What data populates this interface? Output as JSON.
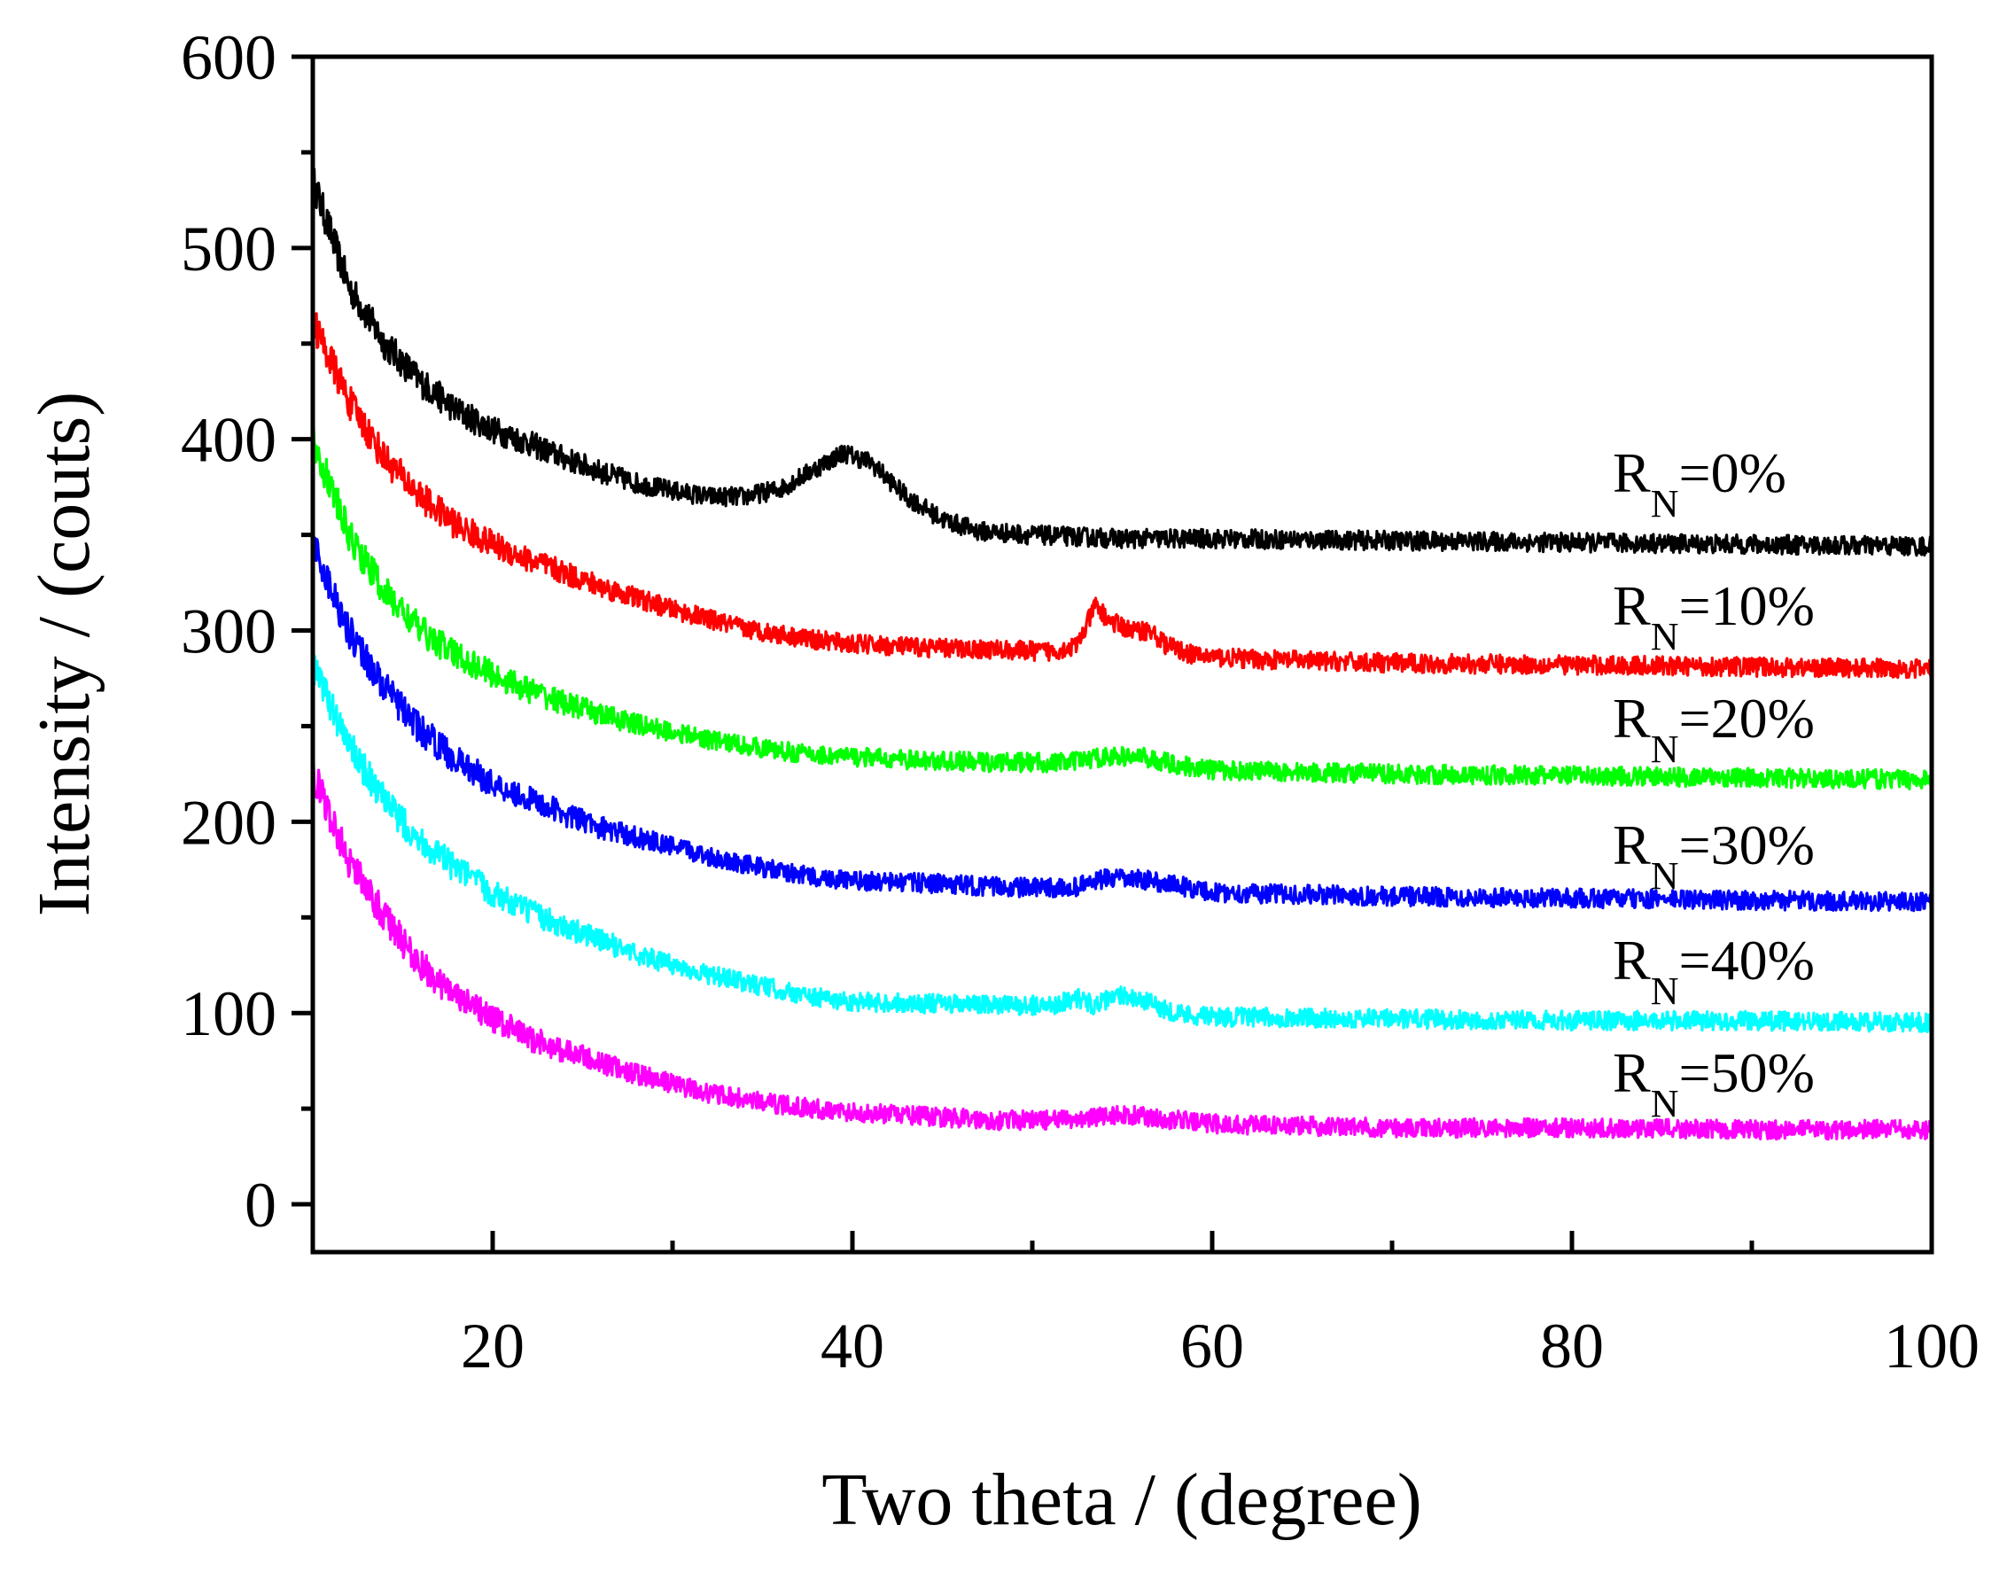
{
  "chart_data": {
    "type": "line",
    "title": "",
    "xlabel": "Two theta / (degree)",
    "ylabel": "Intensity / (couts)",
    "xlim": [
      10,
      100
    ],
    "ylim": [
      -25,
      600
    ],
    "x_ticks": [
      20,
      40,
      60,
      80,
      100
    ],
    "x_tick_labels": [
      "20",
      "40",
      "60",
      "80",
      "100"
    ],
    "y_ticks": [
      0,
      100,
      200,
      300,
      400,
      500,
      600
    ],
    "y_tick_labels": [
      "0",
      "100",
      "200",
      "300",
      "400",
      "500",
      "600"
    ],
    "grid": false,
    "legend": "inline labels at right end of each curve",
    "series": [
      {
        "name_main": "R",
        "name_sub": "N",
        "name_tail": "=0%",
        "color": "#000000",
        "points": [
          [
            10,
            535
          ],
          [
            12,
            480
          ],
          [
            14,
            450
          ],
          [
            16,
            430
          ],
          [
            18,
            415
          ],
          [
            20,
            405
          ],
          [
            22,
            398
          ],
          [
            24,
            390
          ],
          [
            26,
            383
          ],
          [
            28,
            377
          ],
          [
            30,
            373
          ],
          [
            32,
            370
          ],
          [
            34,
            370
          ],
          [
            36,
            374
          ],
          [
            38,
            385
          ],
          [
            39.5,
            393
          ],
          [
            41,
            388
          ],
          [
            43,
            370
          ],
          [
            45,
            358
          ],
          [
            47,
            352
          ],
          [
            50,
            350
          ],
          [
            55,
            348
          ],
          [
            60,
            348
          ],
          [
            70,
            347
          ],
          [
            80,
            346
          ],
          [
            90,
            345
          ],
          [
            100,
            344
          ]
        ]
      },
      {
        "name_main": "R",
        "name_sub": "N",
        "name_tail": "=10%",
        "color": "#ff0000",
        "points": [
          [
            10,
            462
          ],
          [
            12,
            420
          ],
          [
            14,
            390
          ],
          [
            16,
            370
          ],
          [
            18,
            355
          ],
          [
            20,
            345
          ],
          [
            22,
            337
          ],
          [
            24,
            330
          ],
          [
            26,
            323
          ],
          [
            28,
            317
          ],
          [
            30,
            311
          ],
          [
            32,
            306
          ],
          [
            34,
            301
          ],
          [
            36,
            298
          ],
          [
            38,
            295
          ],
          [
            40,
            293
          ],
          [
            44,
            291
          ],
          [
            48,
            290
          ],
          [
            51,
            289
          ],
          [
            52.5,
            292
          ],
          [
            53.5,
            313
          ],
          [
            54.3,
            305
          ],
          [
            55.5,
            300
          ],
          [
            56.5,
            300
          ],
          [
            57.5,
            292
          ],
          [
            59,
            287
          ],
          [
            62,
            285
          ],
          [
            70,
            283
          ],
          [
            80,
            282
          ],
          [
            90,
            281
          ],
          [
            100,
            280
          ]
        ]
      },
      {
        "name_main": "R",
        "name_sub": "N",
        "name_tail": "=20%",
        "color": "#00ff00",
        "points": [
          [
            10,
            400
          ],
          [
            12,
            350
          ],
          [
            14,
            320
          ],
          [
            16,
            300
          ],
          [
            18,
            287
          ],
          [
            20,
            277
          ],
          [
            22,
            269
          ],
          [
            24,
            262
          ],
          [
            26,
            256
          ],
          [
            28,
            251
          ],
          [
            30,
            247
          ],
          [
            32,
            243
          ],
          [
            34,
            240
          ],
          [
            36,
            237
          ],
          [
            38,
            235
          ],
          [
            40,
            234
          ],
          [
            44,
            232
          ],
          [
            48,
            231
          ],
          [
            52,
            231
          ],
          [
            54,
            234
          ],
          [
            56,
            234
          ],
          [
            58,
            230
          ],
          [
            60,
            227
          ],
          [
            70,
            225
          ],
          [
            80,
            224
          ],
          [
            90,
            223
          ],
          [
            100,
            222
          ]
        ]
      },
      {
        "name_main": "R",
        "name_sub": "N",
        "name_tail": "=30%",
        "color": "#0000ff",
        "points": [
          [
            10,
            345
          ],
          [
            12,
            300
          ],
          [
            14,
            270
          ],
          [
            16,
            248
          ],
          [
            18,
            232
          ],
          [
            20,
            220
          ],
          [
            22,
            212
          ],
          [
            24,
            204
          ],
          [
            26,
            197
          ],
          [
            28,
            192
          ],
          [
            30,
            187
          ],
          [
            32,
            182
          ],
          [
            34,
            178
          ],
          [
            36,
            174
          ],
          [
            38,
            171
          ],
          [
            40,
            169
          ],
          [
            44,
            168
          ],
          [
            48,
            166
          ],
          [
            52,
            165
          ],
          [
            54,
            170
          ],
          [
            56,
            170
          ],
          [
            58,
            167
          ],
          [
            60,
            163
          ],
          [
            70,
            161
          ],
          [
            80,
            160
          ],
          [
            90,
            159
          ],
          [
            100,
            158
          ]
        ]
      },
      {
        "name_main": "R",
        "name_sub": "N",
        "name_tail": "=40%",
        "color": "#00ffff",
        "points": [
          [
            10,
            282
          ],
          [
            12,
            240
          ],
          [
            14,
            210
          ],
          [
            16,
            190
          ],
          [
            18,
            175
          ],
          [
            20,
            163
          ],
          [
            22,
            153
          ],
          [
            24,
            145
          ],
          [
            26,
            138
          ],
          [
            28,
            131
          ],
          [
            30,
            125
          ],
          [
            32,
            120
          ],
          [
            34,
            116
          ],
          [
            36,
            112
          ],
          [
            38,
            108
          ],
          [
            40,
            106
          ],
          [
            44,
            105
          ],
          [
            48,
            104
          ],
          [
            51,
            104
          ],
          [
            52.5,
            108
          ],
          [
            53.5,
            104
          ],
          [
            55,
            110
          ],
          [
            56,
            107
          ],
          [
            58,
            100
          ],
          [
            60,
            98
          ],
          [
            70,
            97
          ],
          [
            80,
            96
          ],
          [
            90,
            96
          ],
          [
            100,
            95
          ]
        ]
      },
      {
        "name_main": "R",
        "name_sub": "N",
        "name_tail": "=50%",
        "color": "#ff00ff",
        "points": [
          [
            10,
            225
          ],
          [
            12,
            180
          ],
          [
            14,
            150
          ],
          [
            16,
            125
          ],
          [
            18,
            108
          ],
          [
            20,
            97
          ],
          [
            22,
            87
          ],
          [
            24,
            80
          ],
          [
            26,
            74
          ],
          [
            28,
            68
          ],
          [
            30,
            63
          ],
          [
            32,
            58
          ],
          [
            34,
            55
          ],
          [
            36,
            52
          ],
          [
            38,
            50
          ],
          [
            40,
            48
          ],
          [
            44,
            46
          ],
          [
            48,
            44
          ],
          [
            52,
            44
          ],
          [
            55,
            47
          ],
          [
            57,
            45
          ],
          [
            60,
            42
          ],
          [
            70,
            40
          ],
          [
            80,
            40
          ],
          [
            90,
            39
          ],
          [
            100,
            39
          ]
        ]
      }
    ]
  }
}
